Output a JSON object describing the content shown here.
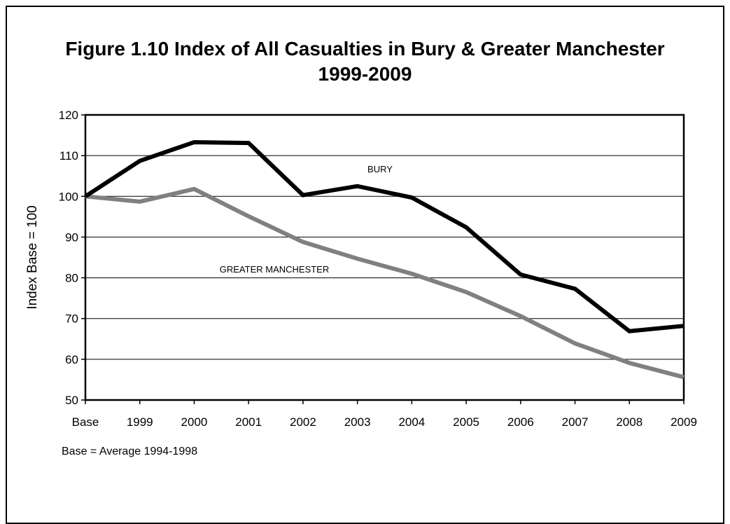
{
  "chart_data": {
    "type": "line",
    "title_line1": "Figure 1.10 Index of All Casualties in Bury & Greater Manchester",
    "title_line2": "1999-2009",
    "xlabel": "",
    "ylabel": "Index Base = 100",
    "categories": [
      "Base",
      "1999",
      "2000",
      "2001",
      "2002",
      "2003",
      "2004",
      "2005",
      "2006",
      "2007",
      "2008",
      "2009"
    ],
    "ylim": [
      50,
      120
    ],
    "yticks": [
      50,
      60,
      70,
      80,
      90,
      100,
      110,
      120
    ],
    "grid": true,
    "series": [
      {
        "name": "BURY",
        "color": "#000000",
        "values": [
          100,
          108.7,
          113.3,
          113.1,
          100.3,
          102.5,
          99.7,
          92.4,
          80.8,
          77.3,
          66.9,
          68.2
        ]
      },
      {
        "name": "GREATER MANCHESTER",
        "color": "#808080",
        "values": [
          100,
          98.7,
          101.8,
          95.1,
          88.8,
          84.7,
          81.0,
          76.5,
          70.6,
          63.9,
          59.1,
          55.6
        ]
      }
    ],
    "footnote": "Base = Average 1994-1998"
  }
}
